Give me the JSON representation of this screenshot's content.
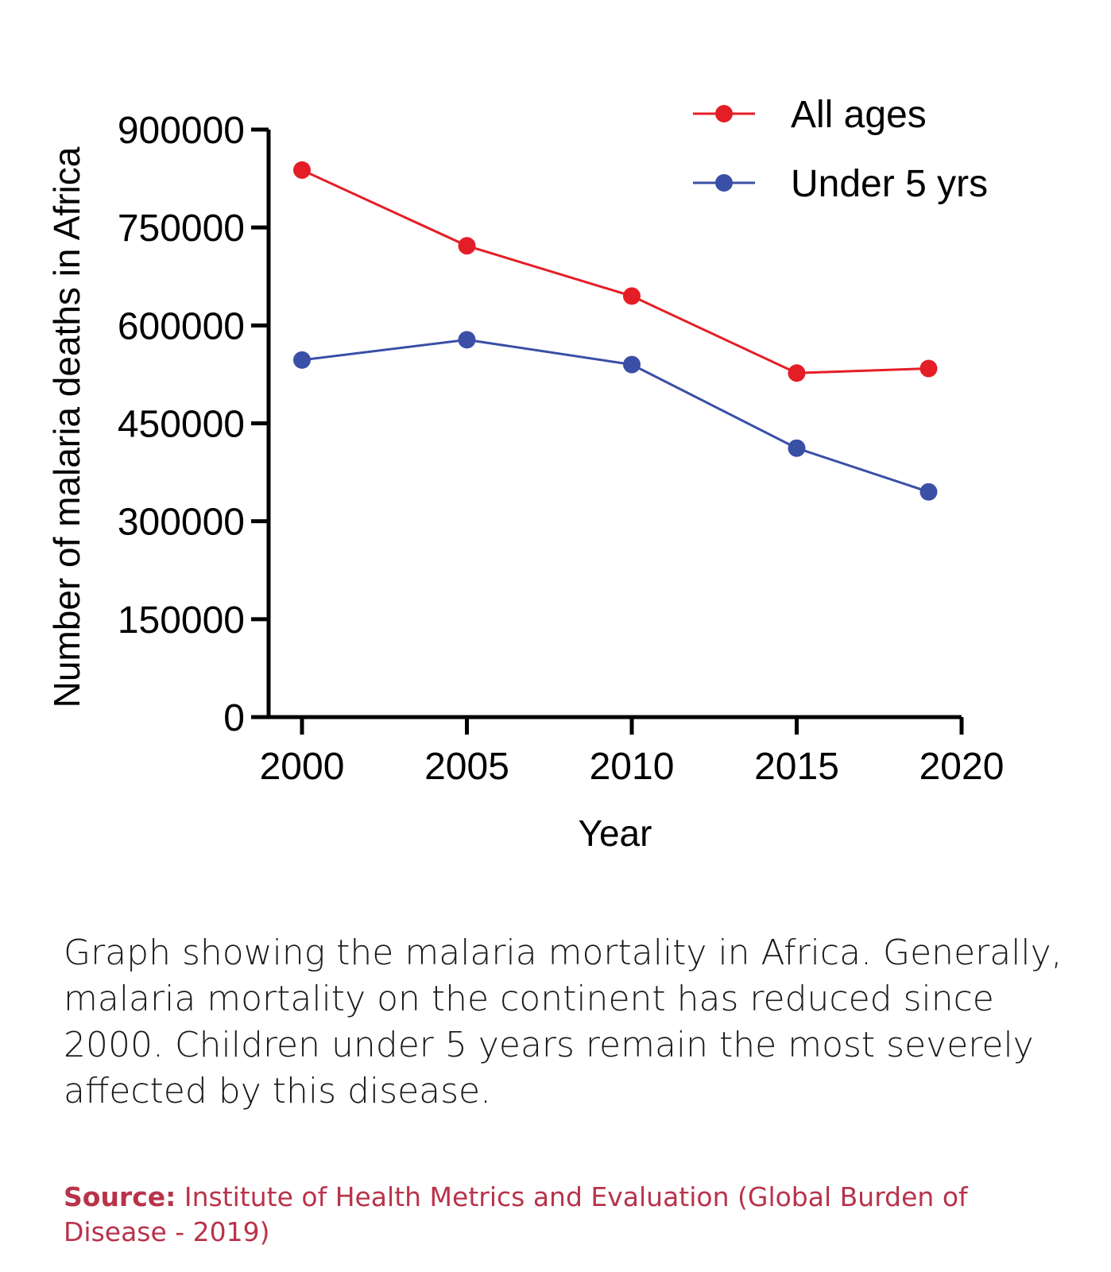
{
  "chart_data": {
    "type": "line",
    "xlabel": "Year",
    "ylabel": "Number of malaria deaths in Africa",
    "xlim": [
      2000,
      2020
    ],
    "ylim": [
      0,
      900000
    ],
    "xticks": [
      "2000",
      "2005",
      "2010",
      "2015",
      "2020"
    ],
    "yticks": [
      "0",
      "150000",
      "300000",
      "450000",
      "600000",
      "750000",
      "900000"
    ],
    "grid": false,
    "legend_position": "top-right",
    "series": [
      {
        "name": "All ages",
        "color": "#e41e26",
        "x": [
          2000,
          2005,
          2010,
          2015,
          2019
        ],
        "values": [
          838000,
          722000,
          645000,
          527000,
          534000
        ]
      },
      {
        "name": "Under 5 yrs",
        "color": "#3a4fa6",
        "x": [
          2000,
          2005,
          2010,
          2015,
          2019
        ],
        "values": [
          547000,
          578000,
          540000,
          412000,
          345000
        ]
      }
    ]
  },
  "caption": "Graph showing the malaria mortality in Africa. Generally, malaria mortality on the continent has reduced since 2000. Children under 5 years remain the most severely affected by this disease.",
  "source": {
    "label": "Source:",
    "text": "Institute of Health Metrics and Evaluation (Global Burden of Disease - 2019)"
  }
}
